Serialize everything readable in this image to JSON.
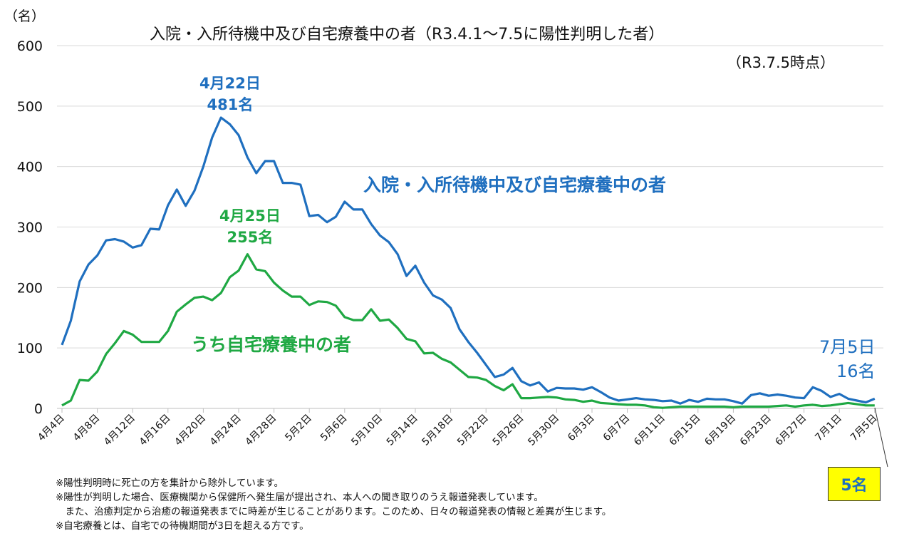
{
  "chart_data": {
    "type": "line",
    "title": "入院・入所待機中及び自宅療養中の者（R3.4.1〜7.5に陽性判明した者）",
    "subtitle": "（R3.7.5時点）",
    "ylabel": "（名）",
    "xlabel": "",
    "ylim": [
      0,
      600
    ],
    "yticks": [
      "0",
      "100",
      "200",
      "300",
      "400",
      "500",
      "600"
    ],
    "grid": true,
    "x_start": "4月4日",
    "x_ticks": [
      "4月4日",
      "4月8日",
      "4月12日",
      "4月16日",
      "4月20日",
      "4月24日",
      "4月28日",
      "5月2日",
      "5月6日",
      "5月10日",
      "5月14日",
      "5月18日",
      "5月22日",
      "5月26日",
      "5月30日",
      "6月3日",
      "6月7日",
      "6月11日",
      "6月15日",
      "6月19日",
      "6月23日",
      "6月27日",
      "7月1日",
      "7月5日"
    ],
    "series": [
      {
        "name": "入院・入所待機中及び自宅療養中の者",
        "color": "#1f6fbf",
        "values": [
          105,
          145,
          210,
          238,
          253,
          278,
          280,
          276,
          266,
          270,
          297,
          296,
          336,
          362,
          335,
          360,
          400,
          448,
          481,
          470,
          452,
          415,
          389,
          409,
          409,
          373,
          373,
          370,
          318,
          320,
          308,
          317,
          342,
          329,
          329,
          305,
          286,
          275,
          255,
          219,
          236,
          208,
          187,
          180,
          166,
          131,
          110,
          92,
          72,
          52,
          56,
          67,
          45,
          38,
          43,
          28,
          34,
          33,
          33,
          31,
          35,
          27,
          18,
          13,
          15,
          17,
          15,
          14,
          12,
          13,
          8,
          14,
          11,
          16,
          15,
          15,
          12,
          8,
          22,
          25,
          21,
          23,
          21,
          18,
          17,
          35,
          29,
          19,
          24,
          16,
          13,
          10,
          16
        ]
      },
      {
        "name": "うち自宅療養中の者",
        "color": "#1fa843",
        "values": [
          5,
          13,
          47,
          46,
          61,
          90,
          108,
          128,
          122,
          110,
          110,
          110,
          128,
          160,
          172,
          183,
          185,
          179,
          191,
          217,
          228,
          255,
          230,
          227,
          208,
          195,
          185,
          185,
          171,
          177,
          176,
          170,
          151,
          146,
          146,
          164,
          145,
          147,
          133,
          115,
          111,
          91,
          92,
          82,
          76,
          64,
          52,
          51,
          47,
          37,
          30,
          40,
          17,
          17,
          18,
          19,
          18,
          15,
          14,
          11,
          13,
          9,
          8,
          7,
          6,
          6,
          5,
          2,
          1,
          2,
          3,
          3,
          3,
          3,
          3,
          3,
          2,
          3,
          3,
          3,
          3,
          4,
          5,
          3,
          5,
          6,
          4,
          5,
          7,
          9,
          7,
          5,
          5
        ]
      }
    ],
    "annotations": {
      "blue_peak_date": "4月22日",
      "blue_peak_value": "481名",
      "green_peak_date": "4月25日",
      "green_peak_value": "255名",
      "blue_last_date": "7月5日",
      "blue_last_value": "16名",
      "green_last_value": "5名",
      "blue_series_label": "入院・入所待機中及び自宅療養中の者",
      "green_series_label": "うち自宅療養中の者"
    }
  },
  "notes": [
    "※陽性判明時に死亡の方を集計から除外しています。",
    "※陽性が判明した場合、医療機関から保健所へ発生届が提出され、本人への聞き取りのうえ報道発表しています。",
    "　また、治癒判定から治癒の報道発表までに時差が生じることがあります。このため、日々の報道発表の情報と差異が生じます。",
    "※自宅療養とは、自宅での待機期間が3日を超える方です。"
  ]
}
